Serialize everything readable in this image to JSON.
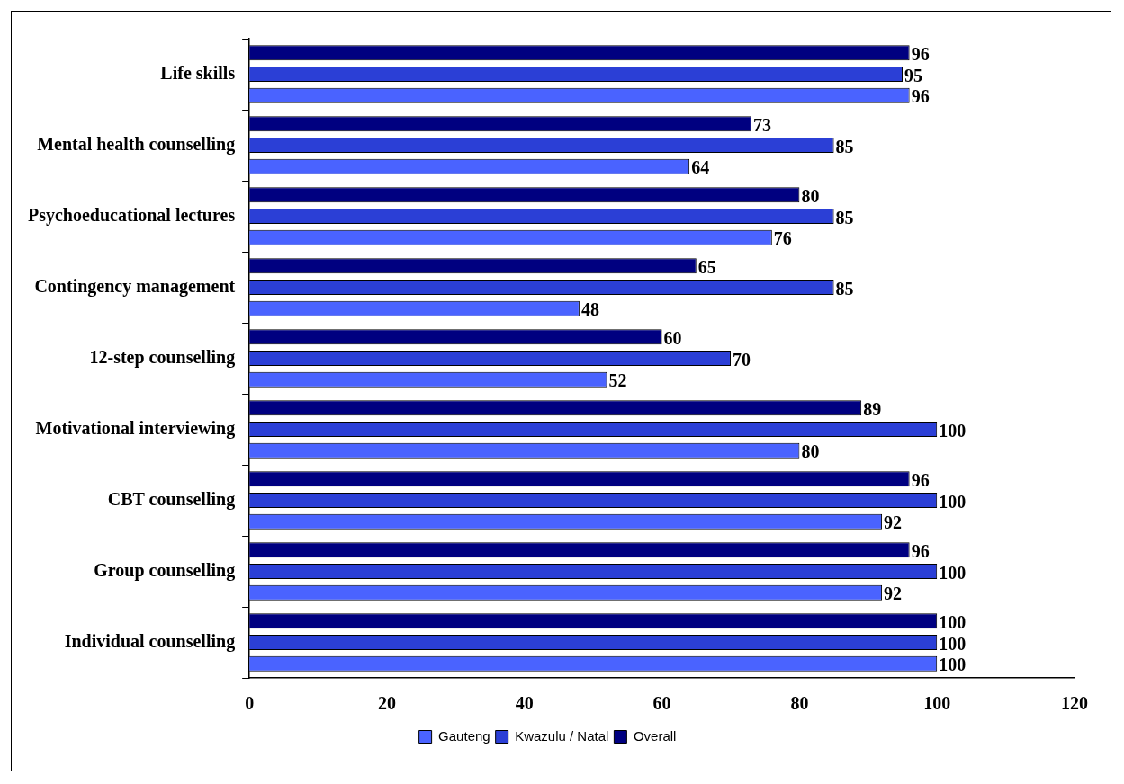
{
  "chart_data": {
    "type": "bar",
    "orientation": "horizontal",
    "categories": [
      "Life skills",
      "Mental health counselling",
      "Psychoeducational lectures",
      "Contingency management",
      "12-step counselling",
      "Motivational interviewing",
      "CBT counselling",
      "Group counselling",
      "Individual counselling"
    ],
    "series": [
      {
        "name": "Gauteng",
        "color": "#4a63ff",
        "values": [
          96,
          64,
          76,
          48,
          52,
          80,
          92,
          92,
          100
        ]
      },
      {
        "name": "Kwazulu / Natal",
        "color": "#2b3fd6",
        "values": [
          95,
          85,
          85,
          85,
          70,
          100,
          100,
          100,
          100
        ]
      },
      {
        "name": "Overall",
        "color": "#000080",
        "values": [
          96,
          73,
          80,
          65,
          60,
          89,
          96,
          96,
          100
        ]
      }
    ],
    "xlim": [
      0,
      120
    ],
    "xticks": [
      0,
      20,
      40,
      60,
      80,
      100,
      120
    ],
    "grid": false,
    "legend": "bottom",
    "data_labels": true
  }
}
